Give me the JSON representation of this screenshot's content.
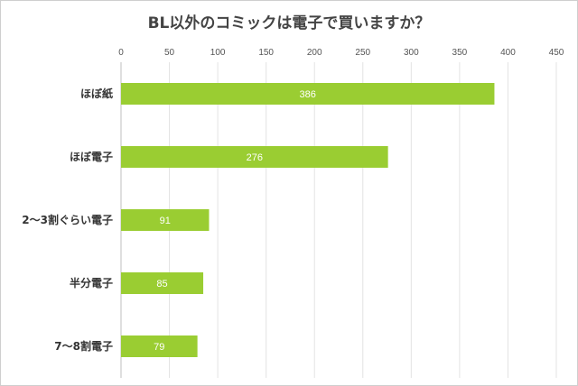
{
  "chart_data": {
    "type": "bar",
    "orientation": "horizontal",
    "title": "BL以外のコミックは電子で買いますか？",
    "categories": [
      "ほぼ紙",
      "ほぼ電子",
      "2～3割ぐらい電子",
      "半分電子",
      "7～8割電子"
    ],
    "values": [
      386,
      276,
      91,
      85,
      79
    ],
    "xlim": [
      0,
      450
    ],
    "xticks": [
      0,
      50,
      100,
      150,
      200,
      250,
      300,
      350,
      400,
      450
    ],
    "xaxis_position": "top",
    "grid": true,
    "bar_color": "#9ACD32",
    "xlabel": "",
    "ylabel": ""
  }
}
